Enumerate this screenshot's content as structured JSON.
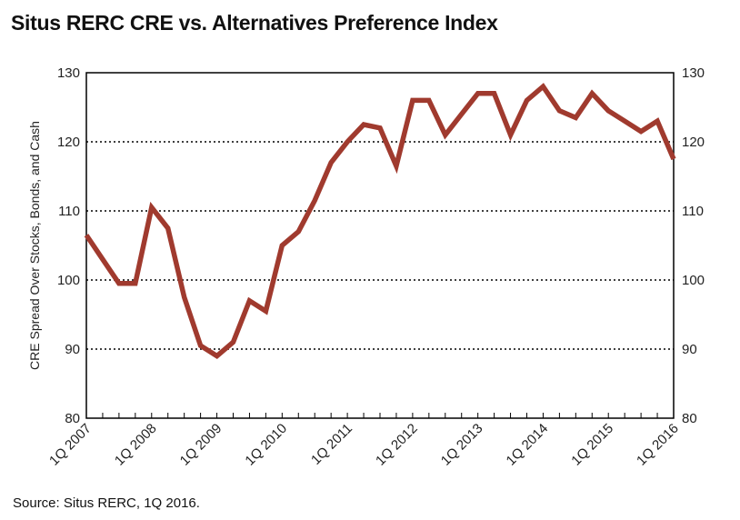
{
  "chart_data": {
    "type": "line",
    "title": "Situs RERC CRE vs. Alternatives Preference Index",
    "ylabel": "CRE Spread Over Stocks, Bonds, and Cash",
    "xlabel": "",
    "source": "Source: Situs RERC, 1Q 2016.",
    "ylim": [
      80,
      130
    ],
    "yticks": [
      80,
      90,
      100,
      110,
      120,
      130
    ],
    "ytick_labels": [
      "80",
      "90",
      "100",
      "110",
      "120",
      "130"
    ],
    "y2ticks": [
      80,
      90,
      100,
      110,
      120,
      130
    ],
    "y2tick_labels": [
      "80",
      "90",
      "100",
      "110",
      "120",
      "130"
    ],
    "grid": "dotted horizontal",
    "xtick_labels": [
      "1Q 2007",
      "1Q 2008",
      "1Q 2009",
      "1Q 2010",
      "1Q 2011",
      "1Q 2012",
      "1Q 2013",
      "1Q 2014",
      "1Q 2015",
      "1Q 2016"
    ],
    "xtick_index": [
      0,
      4,
      8,
      12,
      16,
      20,
      24,
      28,
      32,
      36
    ],
    "series": [
      {
        "name": "",
        "color": "#a03a2e",
        "x": [
          "1Q 2007",
          "2Q 2007",
          "3Q 2007",
          "4Q 2007",
          "1Q 2008",
          "2Q 2008",
          "3Q 2008",
          "4Q 2008",
          "1Q 2009",
          "2Q 2009",
          "3Q 2009",
          "4Q 2009",
          "1Q 2010",
          "2Q 2010",
          "3Q 2010",
          "4Q 2010",
          "1Q 2011",
          "2Q 2011",
          "3Q 2011",
          "4Q 2011",
          "1Q 2012",
          "2Q 2012",
          "3Q 2012",
          "4Q 2012",
          "1Q 2013",
          "2Q 2013",
          "3Q 2013",
          "4Q 2013",
          "1Q 2014",
          "2Q 2014",
          "3Q 2014",
          "4Q 2014",
          "1Q 2015",
          "2Q 2015",
          "3Q 2015",
          "4Q 2015",
          "1Q 2016"
        ],
        "values": [
          106.5,
          103,
          99.5,
          99.5,
          110.5,
          107.5,
          97.5,
          90.5,
          89,
          91,
          97,
          95.5,
          105,
          107,
          111.5,
          117,
          120,
          122.5,
          122,
          116.5,
          126,
          126,
          121,
          124,
          127,
          127,
          121,
          126,
          128,
          124.5,
          123.5,
          127,
          124.5,
          123,
          121.5,
          123,
          117.5
        ]
      }
    ]
  }
}
